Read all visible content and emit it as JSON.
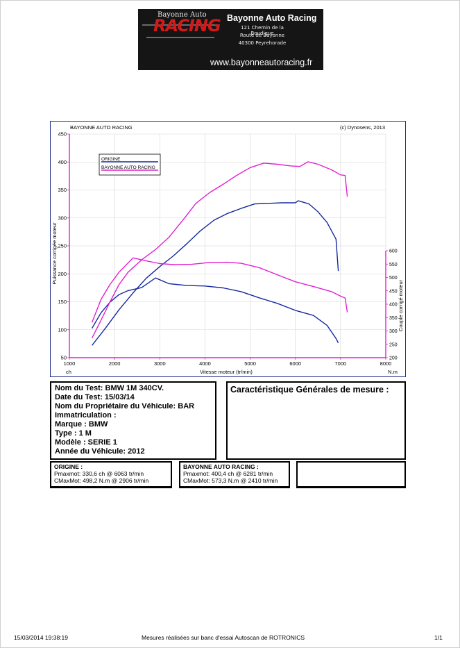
{
  "banner": {
    "small_title": "Bayonne Auto",
    "logo_text": "RACING",
    "company": "Bayonne Auto Racing",
    "address": [
      "121 Chemin de la Boudigue",
      "Route de Bayonne",
      "40300 Peyrehorade"
    ],
    "url": "www.bayonneautoracing.fr"
  },
  "chart_header": {
    "left": "BAYONNE AUTO RACING",
    "right": "(c) Dynosens, 2013"
  },
  "chart_data": {
    "type": "line",
    "xlabel": "Vitesse moteur (tr/min)",
    "xunit": "ch",
    "ylabel_left": "Puissance corrigée moteur",
    "ylabel_right": "Couple corrigé moteur",
    "yunit_right": "N.m",
    "xlim": [
      1000,
      8000
    ],
    "xticks": [
      1000,
      2000,
      3000,
      4000,
      5000,
      6000,
      7000,
      8000
    ],
    "ylim_left": [
      50,
      450
    ],
    "yticks_left": [
      50,
      100,
      150,
      200,
      250,
      300,
      350,
      400,
      450
    ],
    "ylim_right": [
      200,
      600
    ],
    "yticks_right": [
      200,
      250,
      300,
      350,
      400,
      450,
      500,
      550,
      600
    ],
    "legend": [
      "ORIGINE",
      "BAYONNE AUTO RACING"
    ],
    "colors": {
      "origine": "#1428a0",
      "bar": "#e020d0",
      "axis": "#e020d0",
      "frame": "#1f2f8a"
    },
    "series": [
      {
        "name": "ORIGINE",
        "kind": "power",
        "axis": "left",
        "x": [
          1500,
          1800,
          2100,
          2400,
          2700,
          3000,
          3300,
          3600,
          3900,
          4200,
          4500,
          4800,
          5100,
          5400,
          5700,
          6000,
          6063,
          6300,
          6500,
          6700,
          6900,
          6950
        ],
        "y": [
          72,
          103,
          136,
          165,
          192,
          213,
          232,
          254,
          277,
          296,
          308,
          317,
          325,
          326,
          327,
          327,
          330.6,
          325,
          311,
          292,
          262,
          205
        ]
      },
      {
        "name": "ORIGINE",
        "kind": "torque",
        "axis": "right",
        "x": [
          1500,
          1700,
          1900,
          2100,
          2300,
          2600,
          2906,
          3200,
          3600,
          4000,
          4400,
          4800,
          5200,
          5600,
          6000,
          6400,
          6700,
          6900,
          6950
        ],
        "y": [
          310,
          368,
          408,
          436,
          451,
          462,
          498.2,
          477,
          470,
          468,
          461,
          447,
          424,
          403,
          377,
          358,
          321,
          272,
          255
        ]
      },
      {
        "name": "BAYONNE AUTO RACING",
        "kind": "power",
        "axis": "left",
        "x": [
          1500,
          1700,
          1900,
          2100,
          2300,
          2600,
          2900,
          3200,
          3500,
          3800,
          4100,
          4400,
          4700,
          5000,
          5300,
          5600,
          5900,
          6100,
          6281,
          6500,
          6800,
          7000,
          7100,
          7150
        ],
        "y": [
          85,
          117,
          150,
          181,
          203,
          225,
          243,
          265,
          295,
          326,
          345,
          360,
          376,
          390,
          398,
          396,
          393,
          392,
          400.4,
          396,
          386,
          377,
          376,
          338
        ]
      },
      {
        "name": "BAYONNE AUTO RACING",
        "kind": "torque",
        "axis": "right",
        "x": [
          1500,
          1700,
          1900,
          2100,
          2410,
          2700,
          3000,
          3300,
          3700,
          4100,
          4500,
          4800,
          5200,
          5600,
          6000,
          6400,
          6800,
          7000,
          7100,
          7150
        ],
        "y": [
          332,
          418,
          474,
          520,
          573.3,
          562,
          552,
          548,
          549,
          556,
          557,
          553,
          537,
          510,
          484,
          466,
          447,
          430,
          423,
          370
        ]
      }
    ]
  },
  "info": {
    "lines": [
      "Nom du Test: BMW 1M 340CV.",
      "Date du Test: 15/03/14",
      "Nom du Propriétaire du Véhicule: BAR",
      "Immatriculation  :",
      "Marque  : BMW",
      "Type  : 1 M",
      "Modèle  : SERIE 1",
      "Année du Véhicule: 2012"
    ]
  },
  "characteristics": {
    "title": "Caractéristique Générales de mesure :"
  },
  "results": {
    "origine": {
      "title": "ORIGINE :",
      "pmax": "Pmaxmot: 330,6 ch @ 6063 tr/min",
      "cmax": "CMaxMot: 498,2 N.m @ 2906 tr/min"
    },
    "bar": {
      "title": "BAYONNE AUTO RACING :",
      "pmax": "Pmaxmot: 400,4 ch @ 6281 tr/min",
      "cmax": "CMaxMot: 573,3 N.m @ 2410 tr/min"
    }
  },
  "footer": {
    "datetime": "15/03/2014 19:38:19",
    "note": "Mesures réalisées sur banc d'essai Autoscan de ROTRONICS",
    "page": "1/1"
  }
}
